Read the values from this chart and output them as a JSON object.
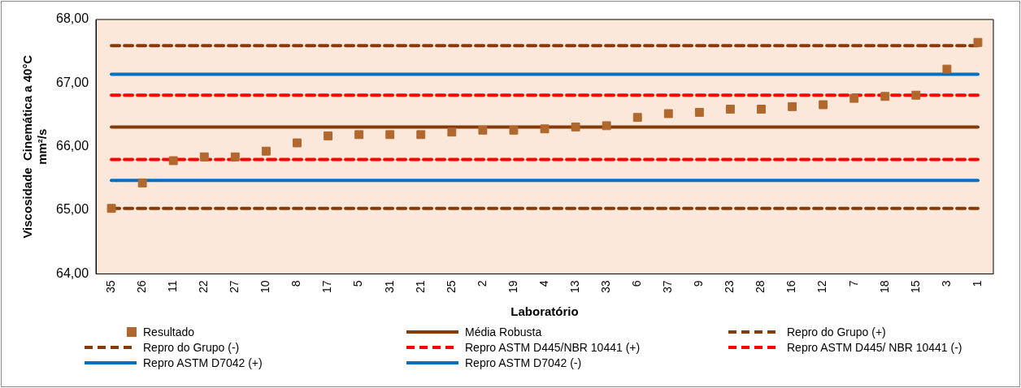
{
  "chart_data": {
    "type": "scatter",
    "xlabel": "Laboratório",
    "ylabel": "Viscosidade  Cinemática a 40°C\nmm²/s",
    "categories": [
      "35",
      "26",
      "11",
      "22",
      "27",
      "10",
      "8",
      "17",
      "5",
      "31",
      "21",
      "25",
      "2",
      "19",
      "4",
      "13",
      "33",
      "6",
      "37",
      "9",
      "23",
      "28",
      "16",
      "12",
      "7",
      "18",
      "15",
      "3",
      "1"
    ],
    "ylim": [
      64,
      68
    ],
    "yticks": [
      {
        "value": 64,
        "label": "64,00"
      },
      {
        "value": 65,
        "label": "65,00"
      },
      {
        "value": 66,
        "label": "66,00"
      },
      {
        "value": 67,
        "label": "67,00"
      },
      {
        "value": 68,
        "label": "68,00"
      }
    ],
    "grid": false,
    "legend": "bottom",
    "series": [
      {
        "name": "Resultado",
        "type": "scatter",
        "marker": "square",
        "color": "#b0682f",
        "values": [
          65.03,
          65.43,
          65.78,
          65.84,
          65.84,
          65.93,
          66.06,
          66.17,
          66.19,
          66.19,
          66.19,
          66.23,
          66.26,
          66.26,
          66.28,
          66.31,
          66.33,
          66.46,
          66.52,
          66.54,
          66.59,
          66.59,
          66.63,
          66.66,
          66.76,
          66.79,
          66.81,
          67.22,
          67.64
        ]
      },
      {
        "name": "Média Robusta",
        "type": "line",
        "marker": "none",
        "line_style": "solid",
        "color": "#843c0c",
        "values": [
          66.31,
          66.31,
          66.31,
          66.31,
          66.31,
          66.31,
          66.31,
          66.31,
          66.31,
          66.31,
          66.31,
          66.31,
          66.31,
          66.31,
          66.31,
          66.31,
          66.31,
          66.31,
          66.31,
          66.31,
          66.31,
          66.31,
          66.31,
          66.31,
          66.31,
          66.31,
          66.31,
          66.31,
          66.31
        ]
      },
      {
        "name": "Repro do Grupo (+)",
        "type": "line",
        "marker": "none",
        "line_style": "dashed",
        "color": "#843c0c",
        "values": [
          67.59,
          67.59,
          67.59,
          67.59,
          67.59,
          67.59,
          67.59,
          67.59,
          67.59,
          67.59,
          67.59,
          67.59,
          67.59,
          67.59,
          67.59,
          67.59,
          67.59,
          67.59,
          67.59,
          67.59,
          67.59,
          67.59,
          67.59,
          67.59,
          67.59,
          67.59,
          67.59,
          67.59,
          67.59
        ]
      },
      {
        "name": "Repro do Grupo (-)",
        "type": "line",
        "marker": "none",
        "line_style": "dashed",
        "color": "#843c0c",
        "values": [
          65.03,
          65.03,
          65.03,
          65.03,
          65.03,
          65.03,
          65.03,
          65.03,
          65.03,
          65.03,
          65.03,
          65.03,
          65.03,
          65.03,
          65.03,
          65.03,
          65.03,
          65.03,
          65.03,
          65.03,
          65.03,
          65.03,
          65.03,
          65.03,
          65.03,
          65.03,
          65.03,
          65.03,
          65.03
        ]
      },
      {
        "name": "Repro ASTM D445/NBR 10441 (+)",
        "type": "line",
        "marker": "none",
        "line_style": "dashed",
        "color": "#ff0000",
        "values": [
          66.81,
          66.81,
          66.81,
          66.81,
          66.81,
          66.81,
          66.81,
          66.81,
          66.81,
          66.81,
          66.81,
          66.81,
          66.81,
          66.81,
          66.81,
          66.81,
          66.81,
          66.81,
          66.81,
          66.81,
          66.81,
          66.81,
          66.81,
          66.81,
          66.81,
          66.81,
          66.81,
          66.81,
          66.81
        ]
      },
      {
        "name": "Repro ASTM D445/ NBR 10441 (-)",
        "type": "line",
        "marker": "none",
        "line_style": "dashed",
        "color": "#ff0000",
        "values": [
          65.8,
          65.8,
          65.8,
          65.8,
          65.8,
          65.8,
          65.8,
          65.8,
          65.8,
          65.8,
          65.8,
          65.8,
          65.8,
          65.8,
          65.8,
          65.8,
          65.8,
          65.8,
          65.8,
          65.8,
          65.8,
          65.8,
          65.8,
          65.8,
          65.8,
          65.8,
          65.8,
          65.8,
          65.8
        ]
      },
      {
        "name": "Repro ASTM D7042 (+)",
        "type": "line",
        "marker": "none",
        "line_style": "solid",
        "color": "#0070c0",
        "values": [
          67.14,
          67.14,
          67.14,
          67.14,
          67.14,
          67.14,
          67.14,
          67.14,
          67.14,
          67.14,
          67.14,
          67.14,
          67.14,
          67.14,
          67.14,
          67.14,
          67.14,
          67.14,
          67.14,
          67.14,
          67.14,
          67.14,
          67.14,
          67.14,
          67.14,
          67.14,
          67.14,
          67.14,
          67.14
        ]
      },
      {
        "name": "Repro ASTM D7042 (-)",
        "type": "line",
        "marker": "none",
        "line_style": "solid",
        "color": "#0070c0",
        "values": [
          65.47,
          65.47,
          65.47,
          65.47,
          65.47,
          65.47,
          65.47,
          65.47,
          65.47,
          65.47,
          65.47,
          65.47,
          65.47,
          65.47,
          65.47,
          65.47,
          65.47,
          65.47,
          65.47,
          65.47,
          65.47,
          65.47,
          65.47,
          65.47,
          65.47,
          65.47,
          65.47,
          65.47,
          65.47
        ]
      }
    ]
  }
}
